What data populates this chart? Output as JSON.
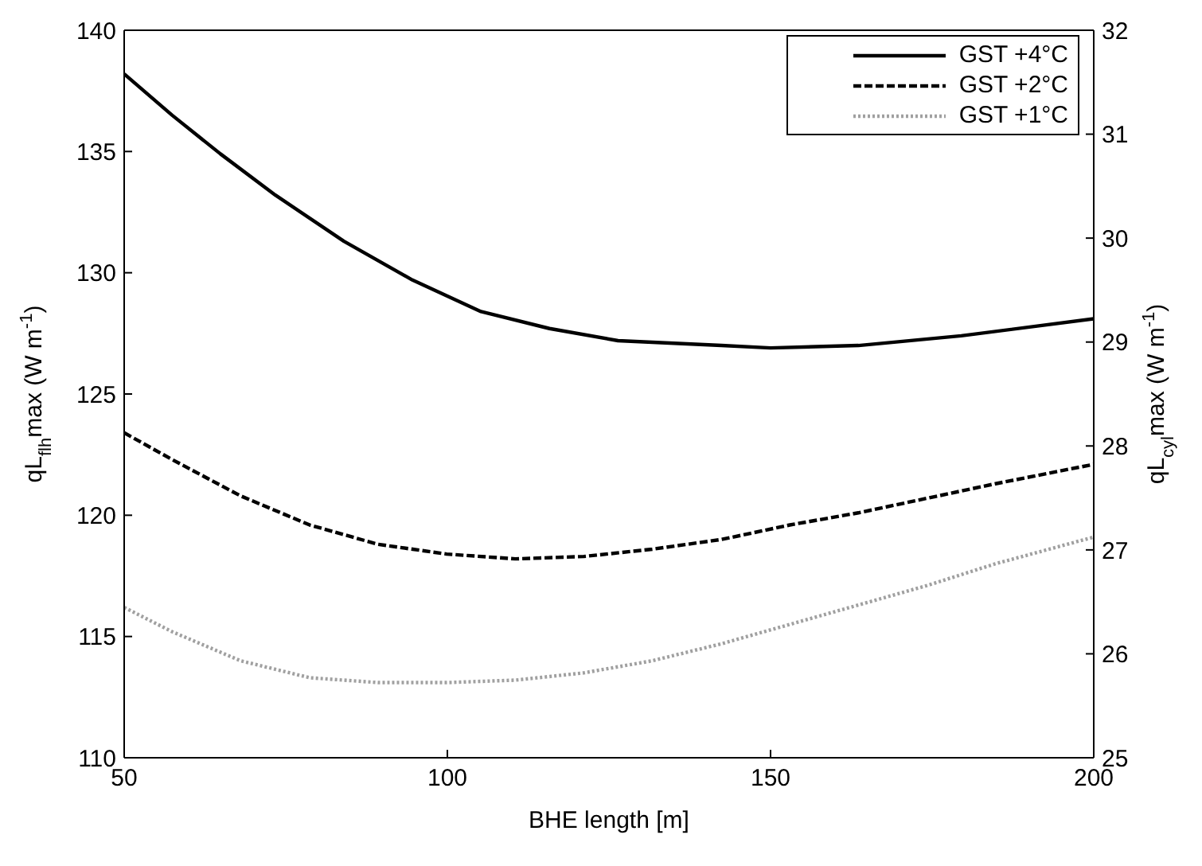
{
  "chart_data": {
    "type": "line",
    "xlabel": "BHE length [m]",
    "ylabel": "qL$_{flh}$max (W m$^{-1}$)",
    "y2label": "qL$_{cyl}$max (W m$^{-1}$)",
    "x": [
      50,
      57.4,
      64.9,
      73.4,
      84,
      94.6,
      105.2,
      115.8,
      126.4,
      142.4,
      150,
      163.6,
      179.5,
      200
    ],
    "series": [
      {
        "name": "GST +4°C",
        "color": "#000000",
        "line_style": "solid",
        "values": [
          138.2,
          136.5,
          134.9,
          133.2,
          131.3,
          129.7,
          128.4,
          127.7,
          127.2,
          127.0,
          126.9,
          127.0,
          127.4,
          128.1
        ]
      },
      {
        "name": "GST +2°C",
        "color": "#000000",
        "line_style": "dashed",
        "x": [
          50,
          57.4,
          68,
          78.7,
          89.3,
          99.9,
          110.5,
          121.1,
          131.7,
          142.4,
          153,
          163.6,
          174.2,
          184.8,
          200
        ],
        "values": [
          123.4,
          122.3,
          120.8,
          119.6,
          118.8,
          118.4,
          118.2,
          118.3,
          118.6,
          119.0,
          119.6,
          120.1,
          120.7,
          121.3,
          122.1
        ]
      },
      {
        "name": "GST +1°C",
        "color": "#a0a0a0",
        "line_style": "dotted",
        "x": [
          50,
          57.4,
          68,
          78.7,
          89.3,
          99.9,
          110.5,
          121.1,
          131.7,
          142.4,
          153,
          163.6,
          174.2,
          184.8,
          200
        ],
        "values": [
          116.2,
          115.2,
          114.0,
          113.3,
          113.1,
          113.1,
          113.2,
          113.5,
          114.0,
          114.7,
          115.5,
          116.3,
          117.1,
          118.0,
          119.1
        ]
      }
    ],
    "xlim": [
      50,
      200
    ],
    "xticks": [
      50,
      100,
      150,
      200
    ],
    "ylim": [
      110,
      140
    ],
    "yticks": [
      110,
      115,
      120,
      125,
      130,
      135,
      140
    ],
    "y2lim": [
      25,
      32
    ],
    "y2ticks": [
      25,
      26,
      27,
      28,
      29,
      30,
      31,
      32
    ],
    "legend": "top right",
    "marker": "none"
  }
}
